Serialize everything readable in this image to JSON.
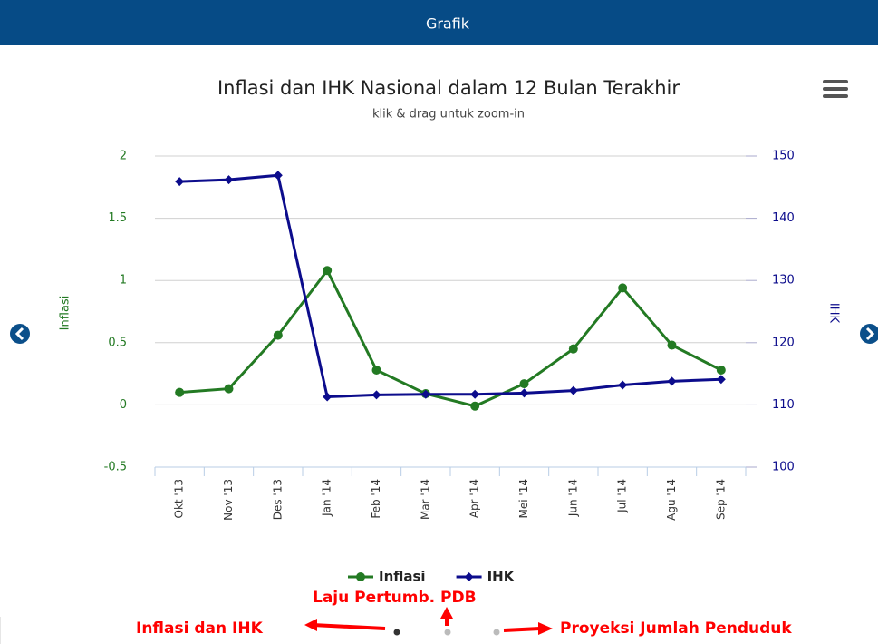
{
  "header": {
    "title": "Grafik"
  },
  "chart_data": {
    "type": "line",
    "title": "Inflasi dan IHK Nasional dalam 12 Bulan Terakhir",
    "subtitle": "klik & drag untuk zoom-in",
    "ylabel": "Inflasi",
    "y2label": "IHK",
    "categories": [
      "Okt '13",
      "Nov '13",
      "Des '13",
      "Jan '14",
      "Feb '14",
      "Mar '14",
      "Apr '14",
      "Mei '14",
      "Jun '14",
      "Jul '14",
      "Agu '14",
      "Sep '14"
    ],
    "series": [
      {
        "name": "Inflasi",
        "color": "#237a23",
        "marker": "circle",
        "values": [
          0.1,
          0.13,
          0.56,
          1.08,
          0.28,
          0.09,
          -0.01,
          0.17,
          0.45,
          0.94,
          0.48,
          0.28
        ]
      },
      {
        "name": "IHK",
        "color": "#0c0c8c",
        "marker": "diamond",
        "axis": "y2",
        "values": [
          145.9,
          146.2,
          146.9,
          111.3,
          111.6,
          111.7,
          111.7,
          111.9,
          112.3,
          113.2,
          113.8,
          114.1
        ]
      }
    ],
    "ylim": [
      -0.5,
      2
    ],
    "yticks": [
      -0.5,
      0,
      0.5,
      1,
      1.5,
      2
    ],
    "y2lim": [
      100,
      150
    ],
    "y2ticks": [
      100,
      110,
      120,
      130,
      140,
      150
    ],
    "grid": true,
    "legend": "bottom"
  },
  "annotations": [
    "Laju Pertumb. PDB",
    "Inflasi dan IHK",
    "Proyeksi Jumlah Penduduk"
  ]
}
